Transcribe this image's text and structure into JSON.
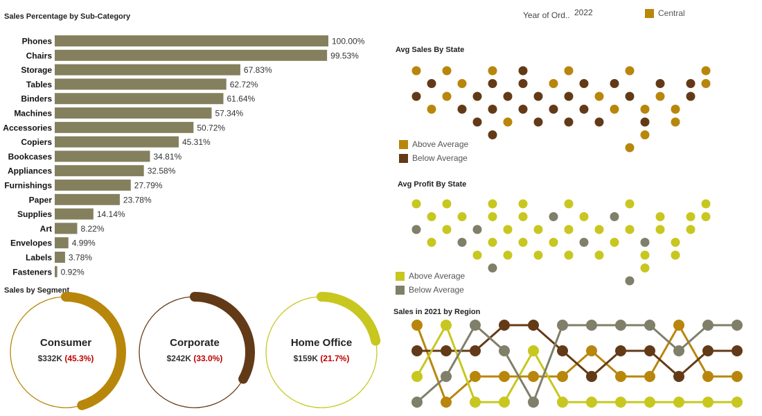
{
  "colors": {
    "bar": "#84805e",
    "central": "#b8860b",
    "above_sales": "#b8860b",
    "below_sales": "#633a17",
    "above_profit": "#c7c720",
    "below_profit": "#7f7f6a",
    "pct_red": "#c00000"
  },
  "filter": {
    "label": "Year of Ord..",
    "value": "2022"
  },
  "region_legend": {
    "label": "Central"
  },
  "sales_legend": {
    "above": "Above Average",
    "below": "Below Average"
  },
  "profit_legend": {
    "above": "Above Average",
    "below": "Below Average"
  },
  "chart_data": [
    {
      "type": "bar",
      "title": "Sales Percentage by Sub-Category",
      "categories": [
        "Phones",
        "Chairs",
        "Storage",
        "Tables",
        "Binders",
        "Machines",
        "Accessories",
        "Copiers",
        "Bookcases",
        "Appliances",
        "Furnishings",
        "Paper",
        "Supplies",
        "Art",
        "Envelopes",
        "Labels",
        "Fasteners"
      ],
      "values": [
        100.0,
        99.53,
        67.83,
        62.72,
        61.64,
        57.34,
        50.72,
        45.31,
        34.81,
        32.58,
        27.79,
        23.78,
        14.14,
        8.22,
        4.99,
        3.78,
        0.92
      ],
      "labels": [
        "100.00%",
        "99.53%",
        "67.83%",
        "62.72%",
        "61.64%",
        "57.34%",
        "50.72%",
        "45.31%",
        "34.81%",
        "32.58%",
        "27.79%",
        "23.78%",
        "14.14%",
        "8.22%",
        "4.99%",
        "3.78%",
        "0.92%"
      ],
      "xlim": [
        0,
        100
      ]
    },
    {
      "type": "scatter",
      "title": "Avg Sales By State",
      "rows": [
        "A.A..A.B..A...A....A",
        ".B.A.B.B.A.B.B..B.BA",
        "B.A.B.B.B.B.A.B.A.B.",
        ".A.B.B.B.B.B.A.A.A..",
        "....B.A.B.B.B..B.A..",
        ".....B.........A....",
        "..............A....."
      ],
      "row_offsets": [
        2,
        1,
        0,
        1,
        2,
        3,
        4
      ]
    },
    {
      "type": "scatter",
      "title": "Avg Profit By State",
      "rows": [
        "A.A..A.A..A...A....A",
        ".A.A.A.A.B.A.B..A.AA",
        "B.A.B.A.A.A.A.A.A.A.",
        ".A.B.A.A.A.B.A.B.A..",
        "....A.A.A.A.A..A.A..",
        ".....B.........A....",
        "..............B....."
      ],
      "row_offsets": [
        2,
        1,
        0,
        1,
        2,
        3,
        4
      ]
    },
    {
      "type": "line",
      "title": "Sales in 2021 by Region",
      "x": [
        1,
        2,
        3,
        4,
        5,
        6,
        7,
        8,
        9,
        10,
        11,
        12
      ],
      "series": [
        {
          "color": "#b8860b",
          "ranks": [
            1,
            4,
            3,
            3,
            3,
            3,
            2,
            3,
            3,
            1,
            3,
            3
          ]
        },
        {
          "color": "#633a17",
          "ranks": [
            2,
            2,
            2,
            1,
            1,
            2,
            3,
            2,
            2,
            3,
            2,
            2
          ]
        },
        {
          "color": "#c7c720",
          "ranks": [
            3,
            1,
            4,
            4,
            2,
            4,
            4,
            4,
            4,
            4,
            4,
            4
          ]
        },
        {
          "color": "#7f7f6a",
          "ranks": [
            4,
            3,
            1,
            2,
            4,
            1,
            1,
            1,
            1,
            2,
            1,
            1
          ]
        }
      ]
    },
    {
      "type": "pie",
      "title": "Sales by Segment",
      "segments": [
        {
          "name": "Consumer",
          "value_label": "$332K",
          "pct_label": "(45.3%)",
          "pct": 45.3,
          "color": "#b8860b"
        },
        {
          "name": "Corporate",
          "value_label": "$242K",
          "pct_label": "(33.0%)",
          "pct": 33.0,
          "color": "#633a17"
        },
        {
          "name": "Home Office",
          "value_label": "$159K",
          "pct_label": "(21.7%)",
          "pct": 21.7,
          "color": "#c7c720"
        }
      ]
    }
  ]
}
